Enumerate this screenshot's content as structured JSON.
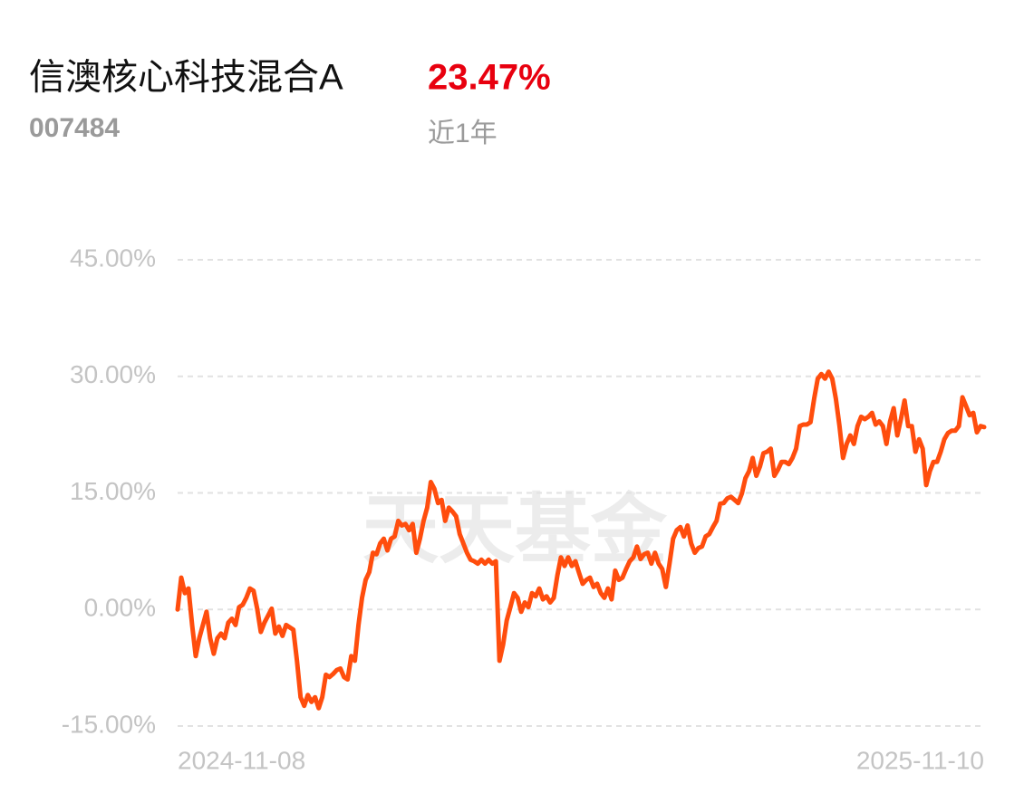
{
  "header": {
    "title": "信澳核心科技混合A",
    "code": "007484",
    "return": "23.47%",
    "period": "近1年"
  },
  "chart_data": {
    "type": "line",
    "watermark": "天天基金",
    "categories": [
      "2024-11-08",
      null,
      null,
      null,
      null,
      null,
      null,
      null,
      null,
      null,
      null,
      null,
      null,
      null,
      null,
      null,
      null,
      null,
      null,
      null,
      null,
      null,
      null,
      null,
      null,
      null,
      null,
      null,
      null,
      null,
      null,
      null,
      null,
      null,
      null,
      null,
      null,
      null,
      null,
      null,
      null,
      null,
      null,
      null,
      null,
      null,
      null,
      null,
      null,
      null,
      null,
      null,
      null,
      null,
      null,
      null,
      null,
      null,
      null,
      null,
      null,
      null,
      null,
      null,
      null,
      null,
      null,
      null,
      null,
      null,
      null,
      null,
      null,
      null,
      null,
      null,
      null,
      null,
      null,
      null,
      null,
      null,
      null,
      null,
      null,
      null,
      null,
      null,
      null,
      null,
      null,
      null,
      null,
      null,
      null,
      null,
      null,
      null,
      null,
      null,
      null,
      null,
      null,
      null,
      null,
      null,
      null,
      null,
      null,
      null,
      null,
      null,
      null,
      null,
      null,
      null,
      null,
      null,
      null,
      null,
      null,
      null,
      null,
      null,
      null,
      null,
      null,
      null,
      null,
      null,
      null,
      null,
      null,
      null,
      null,
      null,
      null,
      null,
      null,
      null,
      null,
      null,
      null,
      null,
      null,
      null,
      null,
      null,
      null,
      null,
      null,
      null,
      null,
      null,
      null,
      null,
      null,
      null,
      null,
      null,
      null,
      null,
      null,
      null,
      null,
      null,
      null,
      null,
      null,
      null,
      null,
      null,
      null,
      null,
      null,
      null,
      null,
      null,
      null,
      null,
      null,
      null,
      null,
      null,
      null,
      null,
      null,
      null,
      null,
      null,
      null,
      null,
      null,
      null,
      null,
      null,
      null,
      null,
      null,
      null,
      null,
      null,
      null,
      null,
      null,
      null,
      null,
      null,
      null,
      null,
      null,
      null,
      null,
      null,
      null,
      null,
      null,
      null,
      null,
      null,
      null,
      null,
      null,
      "2025-11-10"
    ],
    "values": [
      0,
      4.1,
      2.1,
      2.7,
      -2.0,
      -6.0,
      -3.7,
      -2.0,
      -0.3,
      -3.7,
      -5.7,
      -3.7,
      -3.1,
      -3.7,
      -1.7,
      -1.2,
      -2.0,
      0.3,
      0.6,
      1.5,
      2.7,
      2.4,
      0.1,
      -2.9,
      -1.7,
      -0.8,
      0.1,
      -3.1,
      -2.2,
      -3.4,
      -2.0,
      -2.3,
      -2.6,
      -6.6,
      -11.3,
      -12.4,
      -11.0,
      -11.9,
      -11.3,
      -12.7,
      -11.3,
      -8.4,
      -8.7,
      -8.3,
      -7.8,
      -7.6,
      -8.7,
      -9.0,
      -6.0,
      -6.6,
      -2.0,
      1.5,
      3.8,
      4.8,
      7.3,
      7.1,
      8.5,
      9.1,
      7.6,
      9.1,
      9.4,
      11.4,
      10.8,
      11.0,
      10.2,
      11.0,
      7.3,
      9.1,
      11.4,
      13.1,
      16.4,
      15.5,
      13.7,
      14.1,
      11.4,
      13.1,
      12.6,
      12.0,
      9.7,
      8.5,
      7.3,
      6.4,
      6.2,
      5.9,
      6.4,
      5.9,
      6.4,
      5.9,
      6.2,
      -6.6,
      -4.5,
      -1.4,
      0.3,
      2.1,
      1.5,
      -0.3,
      0.9,
      0.3,
      2.1,
      1.7,
      2.7,
      1.3,
      1.7,
      0.9,
      1.5,
      4.4,
      6.7,
      5.6,
      6.7,
      5.6,
      6.2,
      4.7,
      3.3,
      3.8,
      4.1,
      2.9,
      3.3,
      2.1,
      1.5,
      2.7,
      1.3,
      5.0,
      3.8,
      4.1,
      5.2,
      6.2,
      6.7,
      8.1,
      6.5,
      7.1,
      7.3,
      5.9,
      7.3,
      5.9,
      5.2,
      2.9,
      5.9,
      9.1,
      10.2,
      10.6,
      9.4,
      10.8,
      8.5,
      7.3,
      7.9,
      8.1,
      9.4,
      9.7,
      10.6,
      11.4,
      13.6,
      13.7,
      14.3,
      14.5,
      14.1,
      13.7,
      14.9,
      16.9,
      17.8,
      19.5,
      17.2,
      18.4,
      20.1,
      20.3,
      20.7,
      17.2,
      18.0,
      19.0,
      19.0,
      18.7,
      19.5,
      20.7,
      23.6,
      23.8,
      23.8,
      24.1,
      27.1,
      29.7,
      30.3,
      29.7,
      30.6,
      29.7,
      27.1,
      23.6,
      19.5,
      21.3,
      22.4,
      21.3,
      23.6,
      24.8,
      24.5,
      24.8,
      25.3,
      23.8,
      24.2,
      23.6,
      21.3,
      24.2,
      25.9,
      22.4,
      24.5,
      26.9,
      23.6,
      23.6,
      20.3,
      21.9,
      20.7,
      16.0,
      17.8,
      19.0,
      19.0,
      20.3,
      21.9,
      22.7,
      23.0,
      23.0,
      23.6,
      27.3,
      26.2,
      25.0,
      25.3,
      22.8,
      23.6,
      23.47
    ],
    "color": "#ff4d0d",
    "ylim": [
      -15,
      45
    ],
    "yticks": [
      {
        "value": -15,
        "label": "-15.00%"
      },
      {
        "value": 0,
        "label": "0.00%"
      },
      {
        "value": 15,
        "label": "15.00%"
      },
      {
        "value": 30,
        "label": "30.00%"
      },
      {
        "value": 45,
        "label": "45.00%"
      }
    ],
    "grid": true
  }
}
